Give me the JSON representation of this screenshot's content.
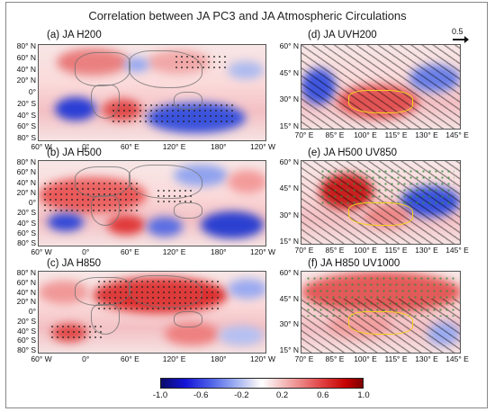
{
  "figure": {
    "title": "Correlation between JA PC3 and JA Atmospheric Circulations"
  },
  "colors": {
    "positive_max": "#7c0000",
    "positive_mid": "#e04040",
    "neutral": "#ffffff",
    "negative_mid": "#4f63e8",
    "negative_max": "#0b0b6a",
    "significance_dots": "#222222",
    "plateau_outline": "#f5d21c",
    "green_dots": "#2e8b3a"
  },
  "reference_vector": {
    "label": "0.5"
  },
  "chart_data": [
    {
      "type": "heatmap",
      "panel": "(a) JA H200",
      "variable": "H200",
      "x_tick_labels": [
        "60° W",
        "0°",
        "60° E",
        "120° E",
        "180°",
        "120° W"
      ],
      "y_tick_labels": [
        "80° N",
        "60° N",
        "40° N",
        "20° N",
        "0°",
        "20° S",
        "40° S",
        "60° S",
        "80° S"
      ],
      "xlim": [
        "60° W",
        "120° W"
      ],
      "ylim": [
        "80° S",
        "80° N"
      ]
    },
    {
      "type": "heatmap",
      "panel": "(b) JA H500",
      "variable": "H500",
      "x_tick_labels": [
        "60° W",
        "0°",
        "60° E",
        "120° E",
        "180°",
        "120° W"
      ],
      "y_tick_labels": [
        "80° N",
        "60° N",
        "40° N",
        "20° N",
        "0°",
        "20° S",
        "40° S",
        "60° S",
        "80° S"
      ],
      "xlim": [
        "60° W",
        "120° W"
      ],
      "ylim": [
        "80° S",
        "80° N"
      ]
    },
    {
      "type": "heatmap",
      "panel": "(c) JA H850",
      "variable": "H850",
      "x_tick_labels": [
        "60° W",
        "0°",
        "60° E",
        "120° E",
        "180°",
        "120° W"
      ],
      "y_tick_labels": [
        "80° N",
        "60° N",
        "40° N",
        "20° N",
        "0°",
        "20° S",
        "40° S",
        "60° S",
        "80° S"
      ],
      "xlim": [
        "60° W",
        "120° W"
      ],
      "ylim": [
        "80° S",
        "80° N"
      ]
    },
    {
      "type": "heatmap",
      "panel": "(d) JA UVH200",
      "variable": "UVH200",
      "x_tick_labels": [
        "70° E",
        "85° E",
        "100° E",
        "115° E",
        "130° E",
        "145° E"
      ],
      "y_tick_labels": [
        "60° N",
        "45° N",
        "30° N",
        "15° N"
      ],
      "xlim": [
        "70° E",
        "145° E"
      ],
      "ylim": [
        "15° N",
        "60° N"
      ]
    },
    {
      "type": "heatmap",
      "panel": "(e) JA H500 UV850",
      "variable": "H500 UV850",
      "x_tick_labels": [
        "70° E",
        "85° E",
        "100° E",
        "115° E",
        "130° E",
        "145° E"
      ],
      "y_tick_labels": [
        "60° N",
        "45° N",
        "30° N",
        "15° N"
      ],
      "xlim": [
        "70° E",
        "145° E"
      ],
      "ylim": [
        "15° N",
        "60° N"
      ]
    },
    {
      "type": "heatmap",
      "panel": "(f) JA H850 UV1000",
      "variable": "H850 UV1000",
      "x_tick_labels": [
        "70° E",
        "85° E",
        "100° E",
        "115° E",
        "130° E",
        "145° E"
      ],
      "y_tick_labels": [
        "60° N",
        "45° N",
        "30° N",
        "15° N"
      ],
      "xlim": [
        "70° E",
        "145° E"
      ],
      "ylim": [
        "15° N",
        "60° N"
      ]
    }
  ],
  "colorbar": {
    "ticks": [
      "-1.0",
      "-0.6",
      "-0.2",
      "0.2",
      "0.6",
      "1.0"
    ],
    "range": [
      -1.0,
      1.0
    ]
  }
}
